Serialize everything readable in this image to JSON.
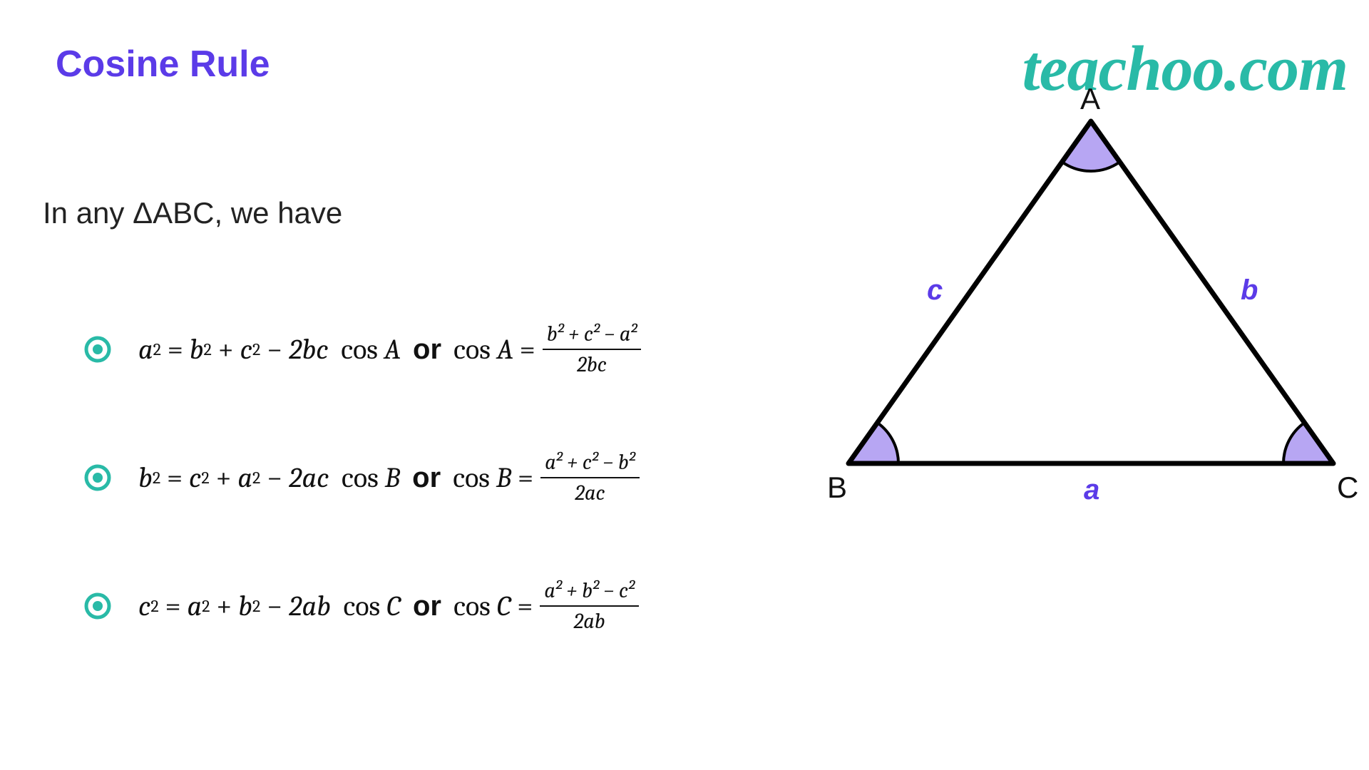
{
  "title": "Cosine Rule",
  "brand": "teachoo.com",
  "intro": "In any ΔABC, we have",
  "colors": {
    "title_color": "#5b3be8",
    "brand_color": "#29baa7",
    "bullet_color": "#29baa7",
    "angle_fill": "#b7a6f3",
    "line_color": "#000000",
    "side_label_color": "#5b3be8",
    "vertex_label_color": "#111111"
  },
  "formulas": [
    {
      "lhs_var": "a",
      "rhs1": "b",
      "rhs2": "c",
      "coef": "2bc",
      "angle": "A",
      "num": "b² + c² − a²",
      "den": "2bc"
    },
    {
      "lhs_var": "b",
      "rhs1": "c",
      "rhs2": "a",
      "coef": "2ac",
      "angle": "B",
      "num": "a² + c² − b²",
      "den": "2ac"
    },
    {
      "lhs_var": "c",
      "rhs1": "a",
      "rhs2": "b",
      "coef": "2ab",
      "angle": "C",
      "num": "a² + b² − c²",
      "den": "2ab"
    }
  ],
  "or_word": "or",
  "triangle": {
    "vertices": {
      "A": "A",
      "B": "B",
      "C": "C"
    },
    "sides": {
      "a": "a",
      "b": "b",
      "c": "c"
    },
    "points": {
      "A": [
        370,
        30
      ],
      "B": [
        30,
        510
      ],
      "C": [
        710,
        510
      ]
    },
    "stroke_width": 7,
    "angle_arc_radius": 70,
    "angle_arc_stroke": 4
  }
}
